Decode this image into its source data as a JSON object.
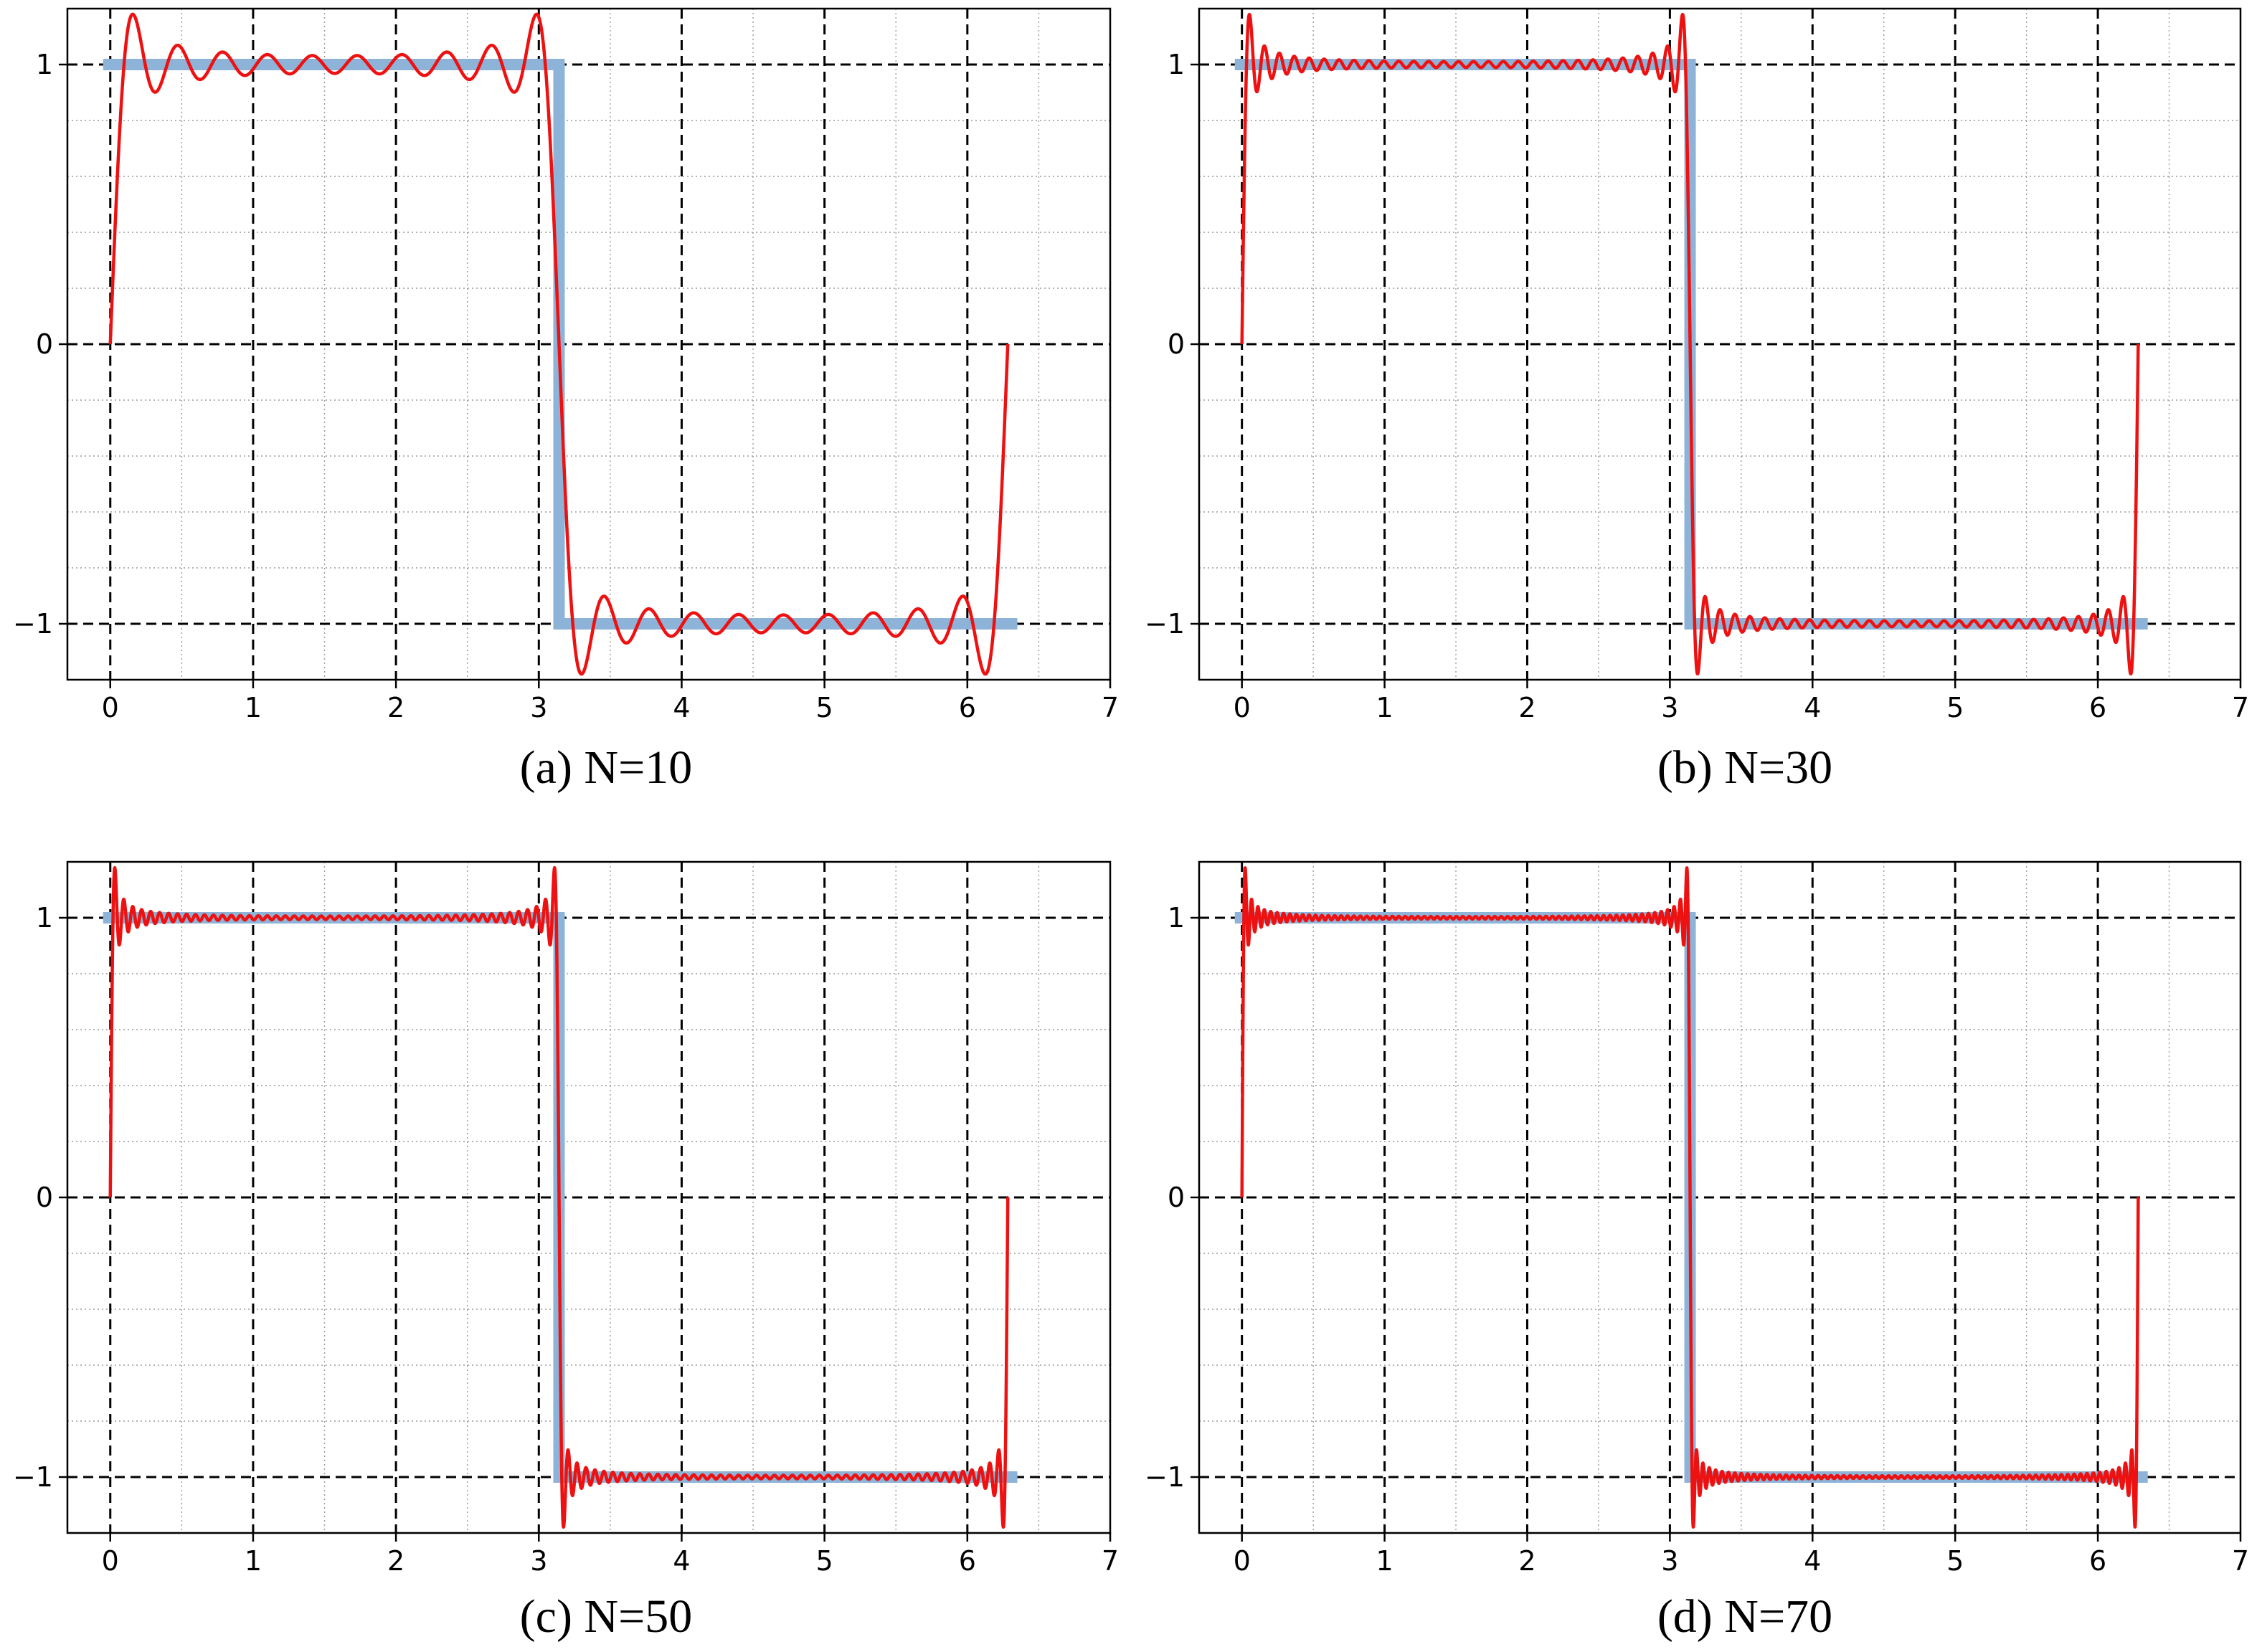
{
  "chart_data": [
    {
      "type": "line",
      "caption": "(a) N=10",
      "N": 10,
      "xlim": [
        -0.3,
        7
      ],
      "ylim": [
        -1.2,
        1.2
      ],
      "xticks": [
        0,
        1,
        2,
        3,
        4,
        5,
        6,
        7
      ],
      "xtick_labels": [
        "0",
        "1",
        "2",
        "3",
        "4",
        "5",
        "6",
        "7"
      ],
      "yticks": [
        -1,
        0,
        1
      ],
      "ytick_labels": [
        "−1",
        "0",
        "1"
      ],
      "grid": {
        "major": "dashed",
        "minor": "dotted"
      },
      "series": [
        {
          "function": "square_wave",
          "x_range": [
            -0.05,
            6.35
          ],
          "color": "#8db4d8"
        },
        {
          "function": "fourier_partial_sum",
          "terms": 10,
          "x_range": [
            0,
            6.2832
          ],
          "color": "#ee1111"
        }
      ]
    },
    {
      "type": "line",
      "caption": "(b) N=30",
      "N": 30,
      "xlim": [
        -0.3,
        7
      ],
      "ylim": [
        -1.2,
        1.2
      ],
      "xticks": [
        0,
        1,
        2,
        3,
        4,
        5,
        6,
        7
      ],
      "xtick_labels": [
        "0",
        "1",
        "2",
        "3",
        "4",
        "5",
        "6",
        "7"
      ],
      "yticks": [
        -1,
        0,
        1
      ],
      "ytick_labels": [
        "−1",
        "0",
        "1"
      ],
      "grid": {
        "major": "dashed",
        "minor": "dotted"
      },
      "series": [
        {
          "function": "square_wave",
          "x_range": [
            -0.05,
            6.35
          ],
          "color": "#8db4d8"
        },
        {
          "function": "fourier_partial_sum",
          "terms": 30,
          "x_range": [
            0,
            6.2832
          ],
          "color": "#ee1111"
        }
      ]
    },
    {
      "type": "line",
      "caption": "(c) N=50",
      "N": 50,
      "xlim": [
        -0.3,
        7
      ],
      "ylim": [
        -1.2,
        1.2
      ],
      "xticks": [
        0,
        1,
        2,
        3,
        4,
        5,
        6,
        7
      ],
      "xtick_labels": [
        "0",
        "1",
        "2",
        "3",
        "4",
        "5",
        "6",
        "7"
      ],
      "yticks": [
        -1,
        0,
        1
      ],
      "ytick_labels": [
        "−1",
        "0",
        "1"
      ],
      "grid": {
        "major": "dashed",
        "minor": "dotted"
      },
      "series": [
        {
          "function": "square_wave",
          "x_range": [
            -0.05,
            6.35
          ],
          "color": "#8db4d8"
        },
        {
          "function": "fourier_partial_sum",
          "terms": 50,
          "x_range": [
            0,
            6.2832
          ],
          "color": "#ee1111"
        }
      ]
    },
    {
      "type": "line",
      "caption": "(d) N=70",
      "N": 70,
      "xlim": [
        -0.3,
        7
      ],
      "ylim": [
        -1.2,
        1.2
      ],
      "xticks": [
        0,
        1,
        2,
        3,
        4,
        5,
        6,
        7
      ],
      "xtick_labels": [
        "0",
        "1",
        "2",
        "3",
        "4",
        "5",
        "6",
        "7"
      ],
      "yticks": [
        -1,
        0,
        1
      ],
      "ytick_labels": [
        "−1",
        "0",
        "1"
      ],
      "grid": {
        "major": "dashed",
        "minor": "dotted"
      },
      "series": [
        {
          "function": "square_wave",
          "x_range": [
            -0.05,
            6.35
          ],
          "color": "#8db4d8"
        },
        {
          "function": "fourier_partial_sum",
          "terms": 70,
          "x_range": [
            0,
            6.2832
          ],
          "color": "#ee1111"
        }
      ]
    }
  ]
}
